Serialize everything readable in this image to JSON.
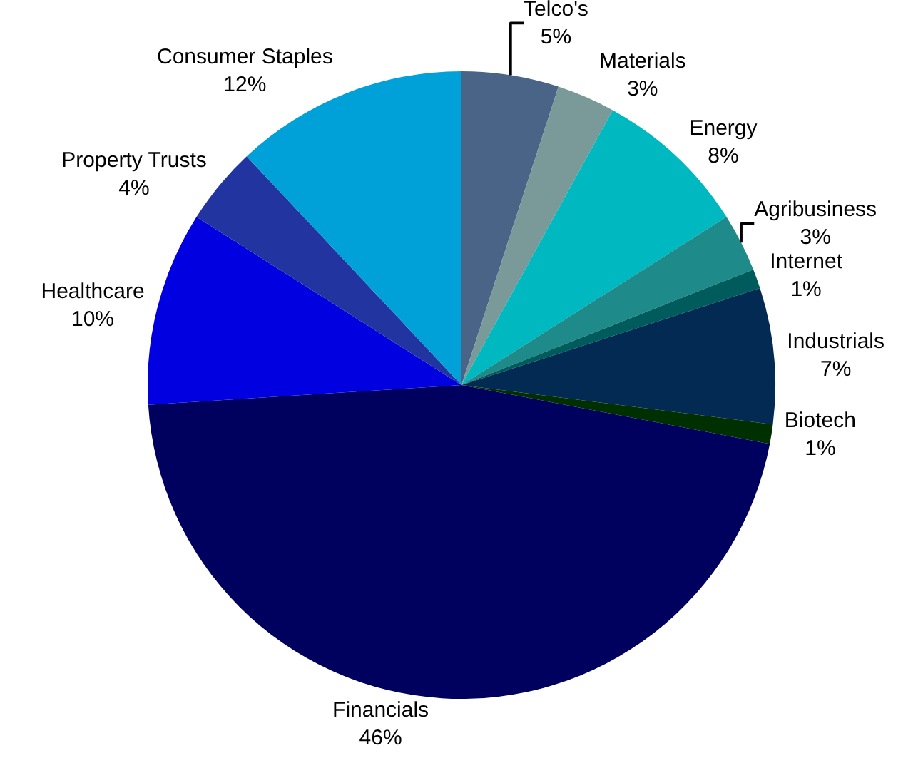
{
  "chart_data": {
    "type": "pie",
    "categories": [
      "Telco's",
      "Materials",
      "Energy",
      "Agribusiness",
      "Internet",
      "Industrials",
      "Biotech",
      "Financials",
      "Healthcare",
      "Property Trusts",
      "Consumer Staples"
    ],
    "values": [
      5,
      3,
      8,
      3,
      1,
      7,
      1,
      46,
      10,
      4,
      12
    ],
    "value_labels": [
      "5%",
      "3%",
      "8%",
      "3%",
      "1%",
      "7%",
      "1%",
      "46%",
      "10%",
      "4%",
      "12%"
    ],
    "colors": [
      "#4a6488",
      "#7a9a9a",
      "#00b8c0",
      "#1e8a8a",
      "#005c5c",
      "#022a52",
      "#003000",
      "#00005e",
      "#0000e0",
      "#2234a0",
      "#00a0d8"
    ],
    "legend": false
  }
}
